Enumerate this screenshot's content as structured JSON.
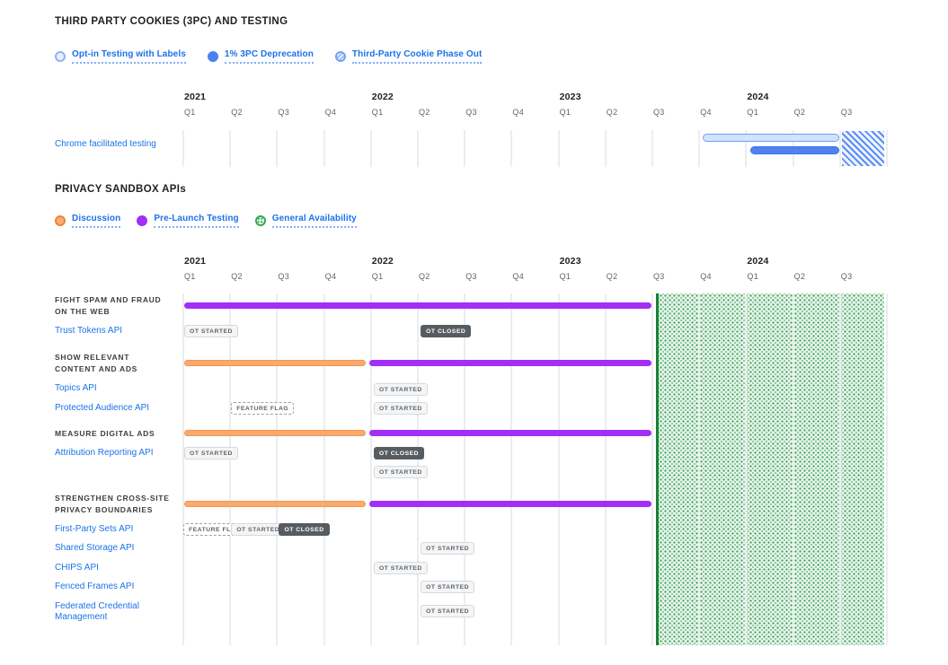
{
  "colors": {
    "link_blue": "#1a73e8",
    "title": "#202124",
    "muted_gray": "#5f6368",
    "purple": "#a32ef5",
    "orange_fill": "#fbaa6e",
    "orange_border": "#ec8137",
    "blue_solid": "#4f83ef",
    "blue_light": "#d2e3fc",
    "hatch_blue": "#5a8df2",
    "green_border": "#188038",
    "green_dot": "#2e9e4f",
    "green_bg": "#e8f4eb",
    "badge_dark": "#575c61",
    "grid": "#ebedef"
  },
  "section_3pc": {
    "title": "THIRD PARTY COOKIES (3PC) AND TESTING",
    "legend": [
      {
        "label": "Opt-in Testing with Labels",
        "type": "optin"
      },
      {
        "label": "1% 3PC Deprecation",
        "type": "deprecation"
      },
      {
        "label": "Third-Party Cookie Phase Out",
        "type": "phaseout"
      }
    ]
  },
  "section_apis": {
    "title": "PRIVACY SANDBOX APIs",
    "legend": [
      {
        "label": "Discussion",
        "type": "discussion"
      },
      {
        "label": "Pre-Launch Testing",
        "type": "prelaunch"
      },
      {
        "label": "General Availability",
        "type": "ga"
      }
    ]
  },
  "chart_data": [
    {
      "id": "3pc-timeline",
      "type": "gantt",
      "title": "THIRD PARTY COOKIES (3PC) AND TESTING",
      "axis": {
        "years": [
          {
            "label": "2021",
            "q": 0
          },
          {
            "label": "2022",
            "q": 4
          },
          {
            "label": "2023",
            "q": 8
          },
          {
            "label": "2024",
            "q": 12
          }
        ],
        "quarters": [
          "Q1",
          "Q2",
          "Q3",
          "Q4",
          "Q1",
          "Q2",
          "Q3",
          "Q4",
          "Q1",
          "Q2",
          "Q3",
          "Q4",
          "Q1",
          "Q2",
          "Q3"
        ],
        "range": "2021-Q1 to 2024-Q3"
      },
      "rows": [
        {
          "label": "Chrome facilitated testing",
          "bars": [
            {
              "name": "Opt-in Testing with Labels",
              "style": "optin",
              "start": "2023-Q4",
              "end": "2024-Q3",
              "startQ": 11.1,
              "endQ": 14.0
            },
            {
              "name": "1% 3PC Deprecation",
              "style": "deprecation",
              "start": "2024-Q1",
              "end": "2024-Q3",
              "startQ": 12.1,
              "endQ": 14.0
            },
            {
              "name": "Third-Party Cookie Phase Out",
              "style": "phaseout",
              "start": "2024-Q3",
              "end": "end",
              "startQ": 14.07,
              "endQ": 14.96
            }
          ]
        }
      ]
    },
    {
      "id": "privacy-sandbox-apis",
      "type": "gantt",
      "title": "PRIVACY SANDBOX APIs",
      "axis": {
        "years": [
          {
            "label": "2021",
            "q": 0
          },
          {
            "label": "2022",
            "q": 4
          },
          {
            "label": "2023",
            "q": 8
          },
          {
            "label": "2024",
            "q": 12
          }
        ],
        "quarters": [
          "Q1",
          "Q2",
          "Q3",
          "Q4",
          "Q1",
          "Q2",
          "Q3",
          "Q4",
          "Q1",
          "Q2",
          "Q3",
          "Q4",
          "Q1",
          "Q2",
          "Q3"
        ],
        "range": "2021-Q1 to 2024-Q3"
      },
      "ga_region": {
        "name": "General Availability",
        "start": "2023-Q3",
        "end": "2024-Q3+",
        "startQ": 10.09,
        "endQ": 14.96
      },
      "rows": [
        {
          "kind": "group",
          "label": "FIGHT SPAM AND FRAUD\nON THE WEB",
          "bars": [
            {
              "name": "Pre-Launch Testing",
              "style": "prelaunch",
              "start": "2021-Q1",
              "end": "2023-Q3",
              "startQ": 0.04,
              "endQ": 10.0
            }
          ],
          "badges": []
        },
        {
          "kind": "api",
          "label": "Trust Tokens API",
          "bars": [],
          "badges": [
            {
              "text": "OT STARTED",
              "style": "light",
              "quarter": "2021-Q1",
              "q": 0.02
            },
            {
              "text": "OT CLOSED",
              "style": "dark",
              "quarter": "2022-Q2",
              "q": 5.06
            }
          ]
        },
        {
          "kind": "group",
          "label": "SHOW RELEVANT\nCONTENT AND ADS",
          "bars": [
            {
              "name": "Discussion",
              "style": "discussion",
              "start": "2021-Q1",
              "end": "2022-Q1",
              "startQ": 0.04,
              "endQ": 3.9
            },
            {
              "name": "Pre-Launch Testing",
              "style": "prelaunch",
              "start": "2022-Q1",
              "end": "2023-Q3",
              "startQ": 3.98,
              "endQ": 10.0
            }
          ],
          "badges": []
        },
        {
          "kind": "api",
          "label": "Topics API",
          "bars": [],
          "badges": [
            {
              "text": "OT STARTED",
              "style": "light",
              "quarter": "2022-Q1",
              "q": 4.06
            }
          ]
        },
        {
          "kind": "api",
          "label": "Protected Audience API",
          "bars": [],
          "badges": [
            {
              "text": "FEATURE FLAG",
              "style": "dashed",
              "quarter": "2021-Q2",
              "q": 1.02
            },
            {
              "text": "OT STARTED",
              "style": "light",
              "quarter": "2022-Q1",
              "q": 4.06
            }
          ]
        },
        {
          "kind": "group",
          "label": "MEASURE DIGITAL ADS",
          "bars": [
            {
              "name": "Discussion",
              "style": "discussion",
              "start": "2021-Q1",
              "end": "2022-Q1",
              "startQ": 0.04,
              "endQ": 3.9
            },
            {
              "name": "Pre-Launch Testing",
              "style": "prelaunch",
              "start": "2022-Q1",
              "end": "2023-Q3",
              "startQ": 3.98,
              "endQ": 10.0
            }
          ],
          "badges": []
        },
        {
          "kind": "api",
          "label": "Attribution Reporting API",
          "bars": [],
          "badges": [
            {
              "text": "OT STARTED",
              "style": "light",
              "quarter": "2021-Q1",
              "q": 0.02
            },
            {
              "text": "OT CLOSED",
              "style": "dark",
              "quarter": "2022-Q1",
              "q": 4.06
            }
          ]
        },
        {
          "kind": "api",
          "label": "",
          "bars": [],
          "badges": [
            {
              "text": "OT STARTED",
              "style": "light",
              "quarter": "2022-Q1",
              "q": 4.06
            }
          ]
        },
        {
          "kind": "group",
          "label": "STRENGTHEN CROSS-SITE\nPRIVACY BOUNDARIES",
          "bars": [
            {
              "name": "Discussion",
              "style": "discussion",
              "start": "2021-Q1",
              "end": "2022-Q1",
              "startQ": 0.04,
              "endQ": 3.9
            },
            {
              "name": "Pre-Launch Testing",
              "style": "prelaunch",
              "start": "2022-Q1",
              "end": "2023-Q3",
              "startQ": 3.98,
              "endQ": 10.0
            }
          ],
          "badges": []
        },
        {
          "kind": "api",
          "label": "First-Party Sets API",
          "bars": [],
          "badges": [
            {
              "text": "FEATURE FLAG",
              "style": "dashed",
              "quarter": "2021-Q1",
              "q": 0.0
            },
            {
              "text": "OT STARTED",
              "style": "light",
              "quarter": "2021-Q2",
              "q": 1.02
            },
            {
              "text": "OT CLOSED",
              "style": "dark",
              "quarter": "2021-Q3",
              "q": 2.04
            }
          ]
        },
        {
          "kind": "api",
          "label": "Shared Storage API",
          "bars": [],
          "badges": [
            {
              "text": "OT STARTED",
              "style": "light",
              "quarter": "2022-Q2",
              "q": 5.06
            }
          ]
        },
        {
          "kind": "api",
          "label": "CHIPS API",
          "bars": [],
          "badges": [
            {
              "text": "OT STARTED",
              "style": "light",
              "quarter": "2022-Q1",
              "q": 4.06
            }
          ]
        },
        {
          "kind": "api",
          "label": "Fenced Frames API",
          "bars": [],
          "badges": [
            {
              "text": "OT STARTED",
              "style": "light",
              "quarter": "2022-Q2",
              "q": 5.06
            }
          ]
        },
        {
          "kind": "api",
          "label": "Federated Credential\nManagement",
          "bars": [],
          "badges": [
            {
              "text": "OT STARTED",
              "style": "light",
              "quarter": "2022-Q2",
              "q": 5.06
            }
          ]
        }
      ]
    }
  ]
}
